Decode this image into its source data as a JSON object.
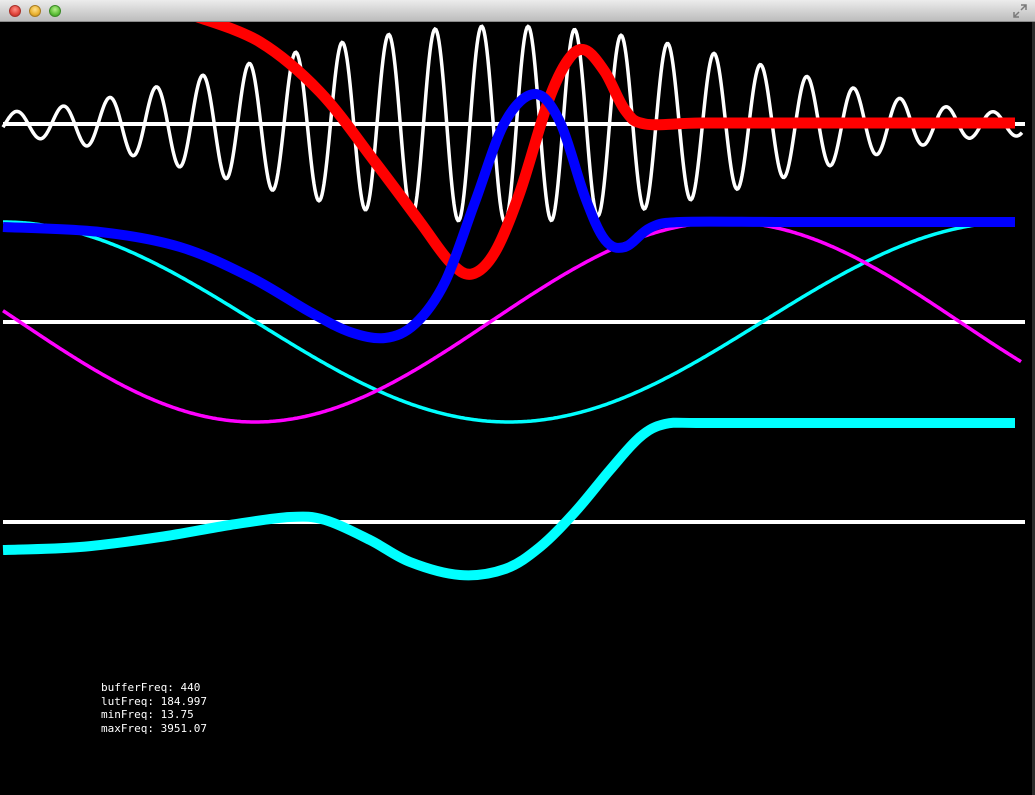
{
  "window": {
    "title": "",
    "controls": [
      "close",
      "minimize",
      "zoom",
      "fullscreen"
    ]
  },
  "readout": {
    "buffer_freq": "bufferFreq: 440",
    "lut_freq": "lutFreq: 184.997",
    "min_freq": "minFreq: 13.75",
    "max_freq": "maxFreq: 3951.07"
  },
  "colors": {
    "background": "#000000",
    "axis": "#ffffff",
    "buffer_wave": "#ffffff",
    "red_curve": "#ff0000",
    "blue_curve": "#0000ff",
    "cyan_curve": "#00ffff",
    "magenta_curve": "#ff00ff"
  }
}
